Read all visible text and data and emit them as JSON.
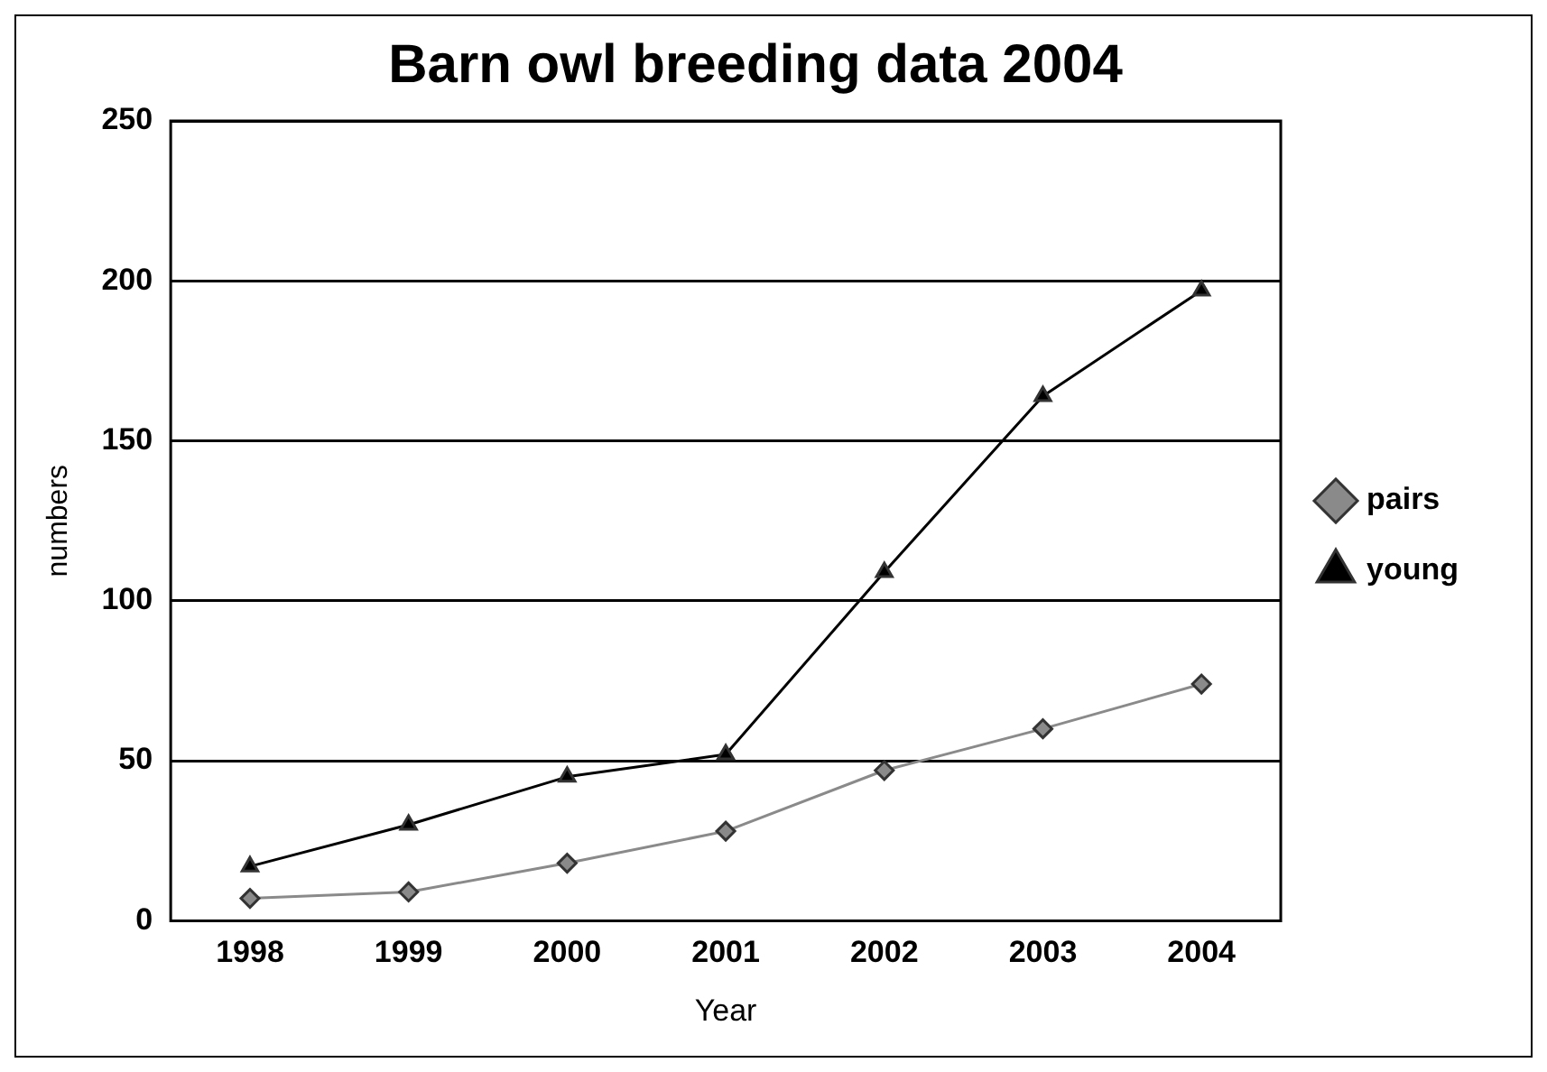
{
  "chart_data": {
    "type": "line",
    "title": "Barn owl breeding data 2004",
    "xlabel": "Year",
    "ylabel": "numbers",
    "categories": [
      "1998",
      "1999",
      "2000",
      "2001",
      "2002",
      "2003",
      "2004"
    ],
    "series": [
      {
        "name": "pairs",
        "color": "#8a8a8a",
        "marker": "diamond",
        "values": [
          7,
          9,
          18,
          28,
          47,
          60,
          74
        ]
      },
      {
        "name": "young",
        "color": "#000000",
        "marker": "triangle",
        "values": [
          17,
          30,
          45,
          52,
          109,
          164,
          197
        ]
      }
    ],
    "ylim": [
      0,
      250
    ],
    "yticks": [
      0,
      50,
      100,
      150,
      200,
      250
    ],
    "grid": "y",
    "legend": "right"
  }
}
